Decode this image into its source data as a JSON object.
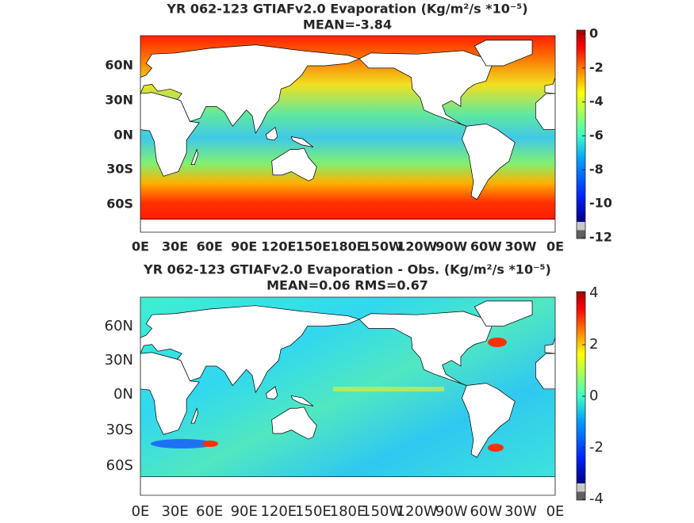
{
  "panels": [
    {
      "title": "YR 062-123 GTIAFv2.0  Evaporation (Kg/m²/s *10⁻⁵)",
      "subtitle": "MEAN=-3.84",
      "x_labels": [
        "0E",
        "30E",
        "60E",
        "90E",
        "120E",
        "150E",
        "180E",
        "150W",
        "120W",
        "90W",
        "60W",
        "30W",
        "0E"
      ],
      "y_labels": [
        "60N",
        "30N",
        "0N",
        "30S",
        "60S"
      ],
      "colorbar": {
        "lim": [
          -12,
          0
        ],
        "ticks": [
          0,
          -2,
          -4,
          -6,
          -8,
          -10,
          -12
        ]
      }
    },
    {
      "title": "YR 062-123 GTIAFv2.0 Evaporation - Obs. (Kg/m²/s *10⁻⁵)",
      "subtitle": "MEAN=0.06   RMS=0.67",
      "x_labels": [
        "0E",
        "30E",
        "60E",
        "90E",
        "120E",
        "150E",
        "180E",
        "150W",
        "120W",
        "90W",
        "60W",
        "30W",
        "0E"
      ],
      "y_labels": [
        "60N",
        "30N",
        "0N",
        "30S",
        "60S"
      ],
      "colorbar": {
        "lim": [
          -4,
          4
        ],
        "ticks": [
          4,
          2,
          0,
          -2,
          -4
        ]
      }
    }
  ]
}
